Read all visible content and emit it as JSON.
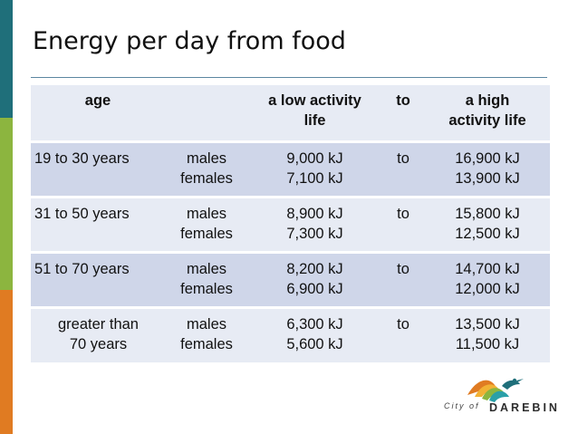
{
  "slide": {
    "title": "Energy per day from food"
  },
  "table": {
    "headers": {
      "age": "age",
      "sex": "",
      "low": [
        "a low activity",
        "life"
      ],
      "to": "to",
      "high": [
        "a high",
        "activity life"
      ]
    },
    "rows": [
      {
        "age": [
          "19 to 30 years"
        ],
        "sex": [
          "males",
          "females"
        ],
        "low": [
          "9,000 kJ",
          "7,100 kJ"
        ],
        "to": "to",
        "high": [
          "16,900 kJ",
          "13,900 kJ"
        ]
      },
      {
        "age": [
          "31 to 50 years"
        ],
        "sex": [
          "males",
          "females"
        ],
        "low": [
          "8,900 kJ",
          "7,300 kJ"
        ],
        "to": "to",
        "high": [
          "15,800 kJ",
          "12,500 kJ"
        ]
      },
      {
        "age": [
          "51 to 70 years"
        ],
        "sex": [
          "males",
          "females"
        ],
        "low": [
          "8,200 kJ",
          "6,900 kJ"
        ],
        "to": "to",
        "high": [
          "14,700 kJ",
          "12,000 kJ"
        ]
      },
      {
        "age": [
          "greater than",
          "70 years"
        ],
        "sex": [
          "males",
          "females"
        ],
        "low": [
          "6,300 kJ",
          "5,600 kJ"
        ],
        "to": "to",
        "high": [
          "13,500 kJ",
          "11,500 kJ"
        ]
      }
    ]
  },
  "logo": {
    "city": "City of",
    "name": "DAREBIN"
  },
  "colors": {
    "sidebar_teal": "#1f6f7a",
    "sidebar_green": "#8cb53f",
    "sidebar_orange": "#e07b22",
    "header_row": "#e7ebf4",
    "row_dark": "#cfd6e9",
    "row_light": "#e7ebf4"
  }
}
